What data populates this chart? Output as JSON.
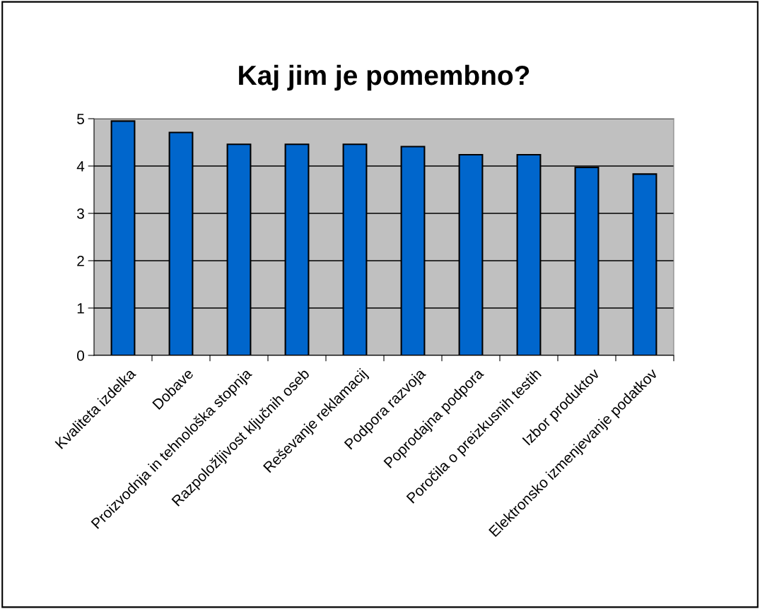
{
  "chart_data": {
    "type": "bar",
    "title": "Kaj jim je pomembno?",
    "categories": [
      "Kvaliteta izdelka",
      "Dobave",
      "Proizvodnja in tehnološka stopnja",
      "Razpoložljivost ključnih oseb",
      "Reševanje reklamacij",
      "Podpora razvoja",
      "Poprodajna podpora",
      "Poročila o preizkusnih testih",
      "Izbor produktov",
      "Elektronsko izmenjevanje podatkov"
    ],
    "values": [
      4.95,
      4.71,
      4.46,
      4.46,
      4.46,
      4.41,
      4.24,
      4.24,
      3.97,
      3.83
    ],
    "color": "#0066cc",
    "ylim": [
      0,
      5
    ],
    "yticks": [
      0,
      1,
      2,
      3,
      4,
      5
    ],
    "grid": "y"
  }
}
